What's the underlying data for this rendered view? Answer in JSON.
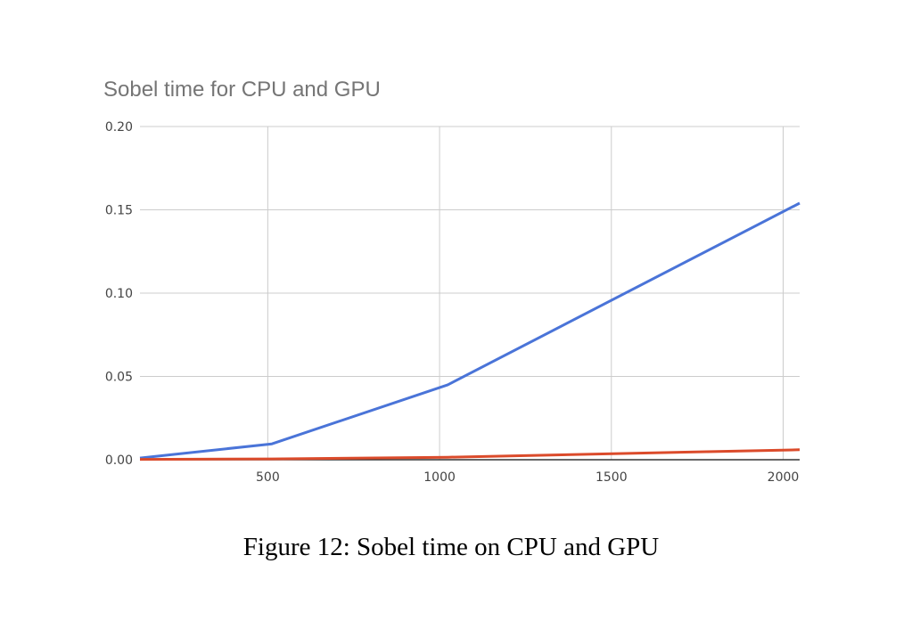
{
  "chart_data": {
    "type": "line",
    "title": "Sobel time for CPU and GPU",
    "xlabel": "",
    "ylabel": "",
    "xlim": [
      128,
      2048
    ],
    "ylim": [
      0,
      0.2
    ],
    "x_ticks": [
      "500",
      "1000",
      "1500",
      "2000"
    ],
    "x_tick_values": [
      500,
      1000,
      1500,
      2000
    ],
    "y_ticks": [
      "0.00",
      "0.05",
      "0.10",
      "0.15",
      "0.20"
    ],
    "y_tick_values": [
      0,
      0.05,
      0.1,
      0.15,
      0.2
    ],
    "grid": true,
    "legend": "none",
    "series": [
      {
        "color": "#4a74d8",
        "points": [
          [
            128,
            0.001
          ],
          [
            512,
            0.0095
          ],
          [
            1024,
            0.045
          ],
          [
            2048,
            0.154
          ]
        ]
      },
      {
        "color": "#db4b2b",
        "points": [
          [
            128,
            0.0002
          ],
          [
            512,
            0.0005
          ],
          [
            1024,
            0.0015
          ],
          [
            2048,
            0.006
          ]
        ]
      }
    ]
  },
  "caption": "Figure 12:  Sobel time on CPU and GPU"
}
